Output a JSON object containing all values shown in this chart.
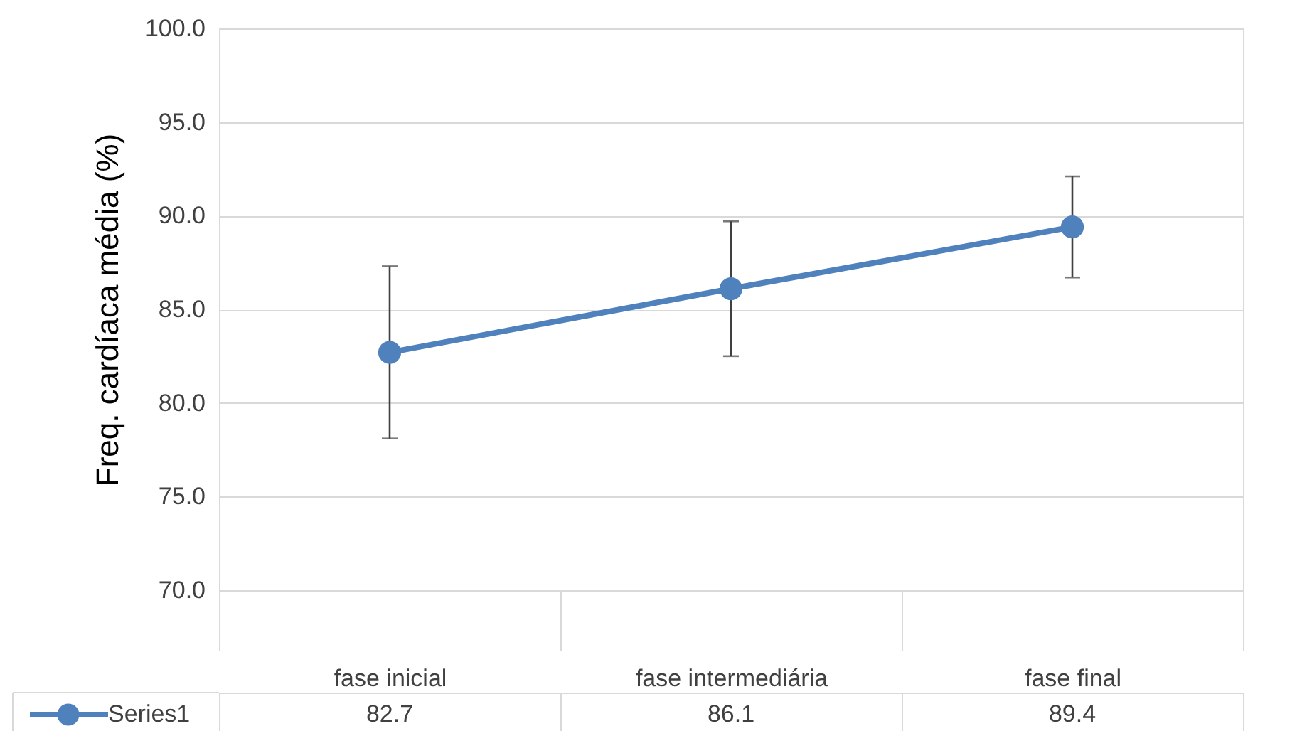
{
  "chart_data": {
    "type": "line",
    "ylabel": "Freq. cardíaca média (%)",
    "categories": [
      "fase inicial",
      "fase intermediária",
      "fase final"
    ],
    "series": [
      {
        "name": "Series1",
        "color": "#4f81bd",
        "values": [
          82.7,
          86.1,
          89.4
        ],
        "errors": [
          4.6,
          3.6,
          2.7
        ]
      }
    ],
    "ylim": [
      70,
      100
    ],
    "yticks": [
      {
        "value": 70,
        "label": "70.0"
      },
      {
        "value": 75,
        "label": "75.0"
      },
      {
        "value": 80,
        "label": "80.0"
      },
      {
        "value": 85,
        "label": "85.0"
      },
      {
        "value": 90,
        "label": "90.0"
      },
      {
        "value": 95,
        "label": "95.0"
      },
      {
        "value": 100,
        "label": "100.0"
      }
    ],
    "grid": "y",
    "marker": "circle",
    "line_style": "solid",
    "data_labels": true,
    "legend": "bottom left"
  }
}
